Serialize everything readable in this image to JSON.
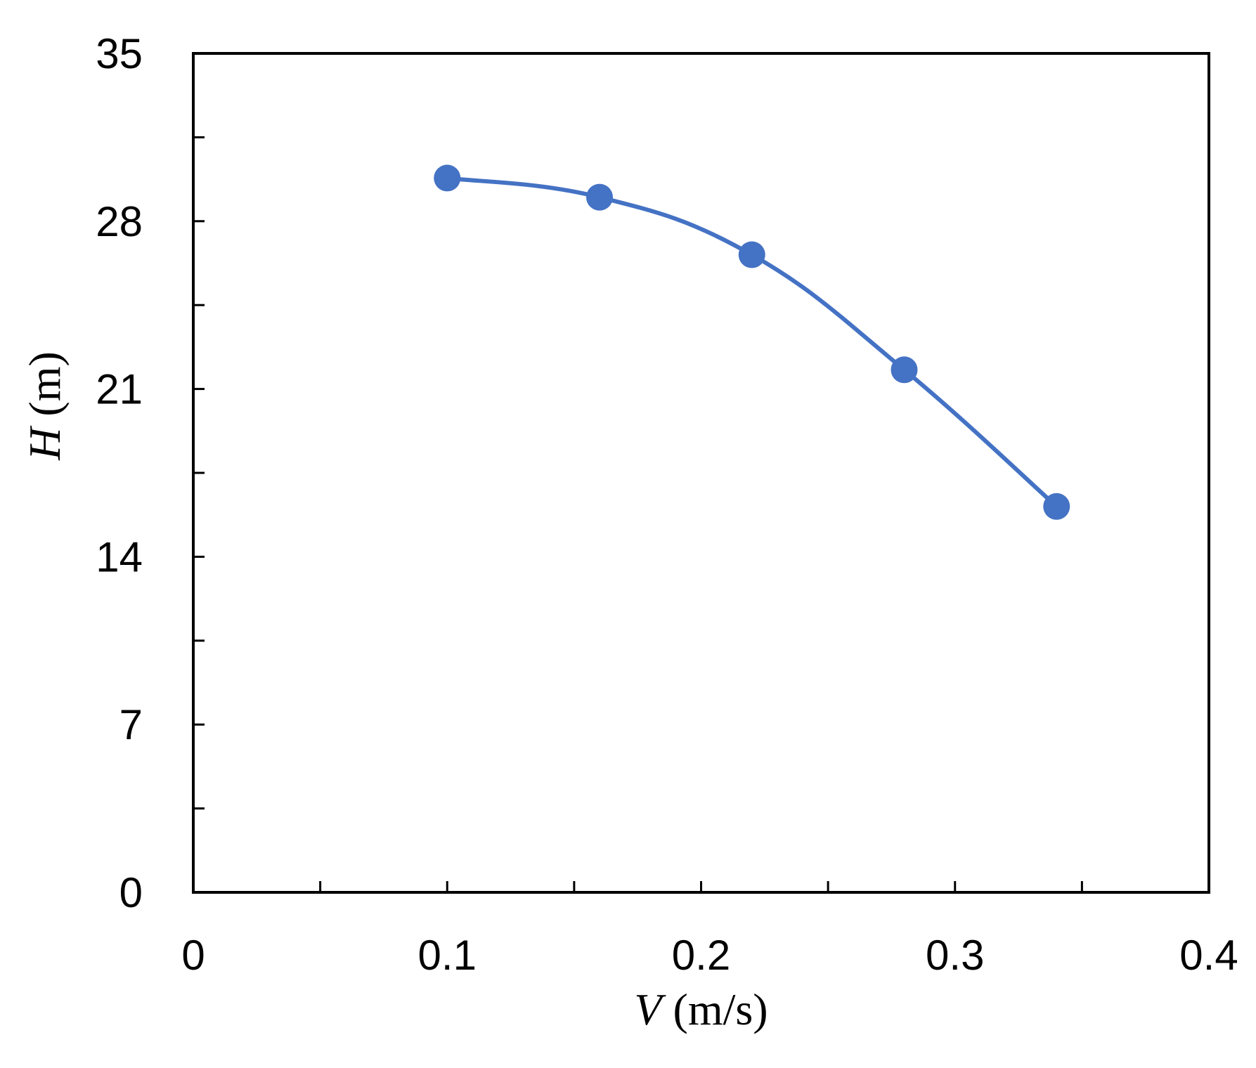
{
  "chart_data": {
    "type": "line",
    "x": [
      0.1,
      0.16,
      0.22,
      0.28,
      0.34
    ],
    "series": [
      {
        "values": [
          29.8,
          29.0,
          26.6,
          21.8,
          16.1
        ]
      }
    ],
    "xlabel": {
      "symbol": "V",
      "unit": " (m/s)"
    },
    "ylabel": {
      "symbol": "H",
      "unit": " (m)"
    },
    "xlim": [
      0,
      0.4
    ],
    "ylim": [
      0,
      35
    ],
    "x_major_ticks": [
      0,
      0.1,
      0.2,
      0.3,
      0.4
    ],
    "x_tick_labels": [
      "0",
      "0.1",
      "0.2",
      "0.3",
      "0.4"
    ],
    "x_minor_ticks": [
      0.05,
      0.15,
      0.25,
      0.35
    ],
    "y_major_ticks": [
      0,
      7,
      14,
      21,
      28,
      35
    ],
    "y_tick_labels": [
      "0",
      "7",
      "14",
      "21",
      "28",
      "35"
    ],
    "y_minor_ticks": [
      3.5,
      10.5,
      17.5,
      24.5,
      31.5
    ],
    "grid": false,
    "legend": "none",
    "smooth": true,
    "markers": "filled-circle",
    "colors": {
      "series": "#4472C4",
      "axis": "#000000"
    }
  }
}
